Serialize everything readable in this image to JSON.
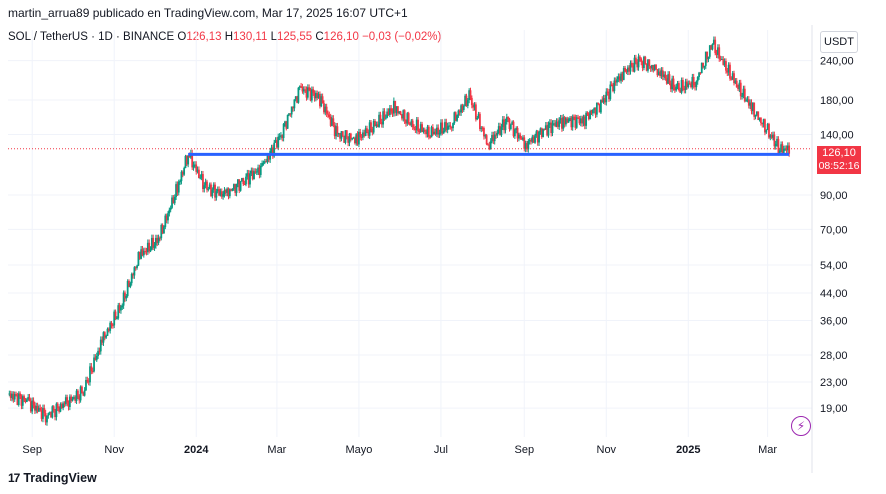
{
  "header": {
    "attribution": "martin_arrua89 publicado en TradingView.com, Mar 17, 2025 16:07 UTC+1"
  },
  "symbol": {
    "name": "SOL / TetherUS · 1D · BINANCE",
    "o_label": "O",
    "o_value": "126,13",
    "h_label": "H",
    "h_value": "130,11",
    "l_label": "L",
    "l_value": "125,55",
    "c_label": "C",
    "c_value": "126,10",
    "change": "−0,03 (−0,02%)"
  },
  "axis": {
    "currency": "USDT",
    "last_price": "126,10",
    "countdown": "08:52:16"
  },
  "footer": {
    "brand": "TradingView",
    "logo": "tradingview-logo-icon"
  },
  "colors": {
    "up": "#089981",
    "down": "#f23645",
    "level": "#2962ff",
    "grid": "#f0f3fa"
  },
  "chart_data": {
    "type": "candlestick",
    "y_scale": "log",
    "y_ticks": [
      "240,00",
      "180,00",
      "140,00",
      "90,00",
      "70,00",
      "54,00",
      "44,00",
      "36,00",
      "28,00",
      "23,00",
      "19,00"
    ],
    "y_tick_values": [
      240,
      180,
      140,
      90,
      70,
      54,
      44,
      36,
      28,
      23,
      19
    ],
    "x_ticks": [
      {
        "label": "Sep",
        "date": "2023-09-01",
        "bold": false
      },
      {
        "label": "Nov",
        "date": "2023-11-01",
        "bold": false
      },
      {
        "label": "2024",
        "date": "2024-01-01",
        "bold": true
      },
      {
        "label": "Mar",
        "date": "2024-03-01",
        "bold": false
      },
      {
        "label": "Mayo",
        "date": "2024-05-01",
        "bold": false
      },
      {
        "label": "Jul",
        "date": "2024-07-01",
        "bold": false
      },
      {
        "label": "Sep",
        "date": "2024-09-01",
        "bold": false
      },
      {
        "label": "Nov",
        "date": "2024-11-01",
        "bold": false
      },
      {
        "label": "2025",
        "date": "2025-01-01",
        "bold": true
      },
      {
        "label": "Mar",
        "date": "2025-03-01",
        "bold": false
      }
    ],
    "x_range": [
      "2023-08-14",
      "2025-04-03"
    ],
    "y_range": [
      16.8,
      300
    ],
    "last_close": 126.1,
    "horizontal_level": {
      "price": 121,
      "start": "2023-12-26",
      "end": "2025-03-17"
    },
    "series": [
      {
        "date": "2023-08-14",
        "close": 21
      },
      {
        "date": "2023-08-28",
        "close": 20
      },
      {
        "date": "2023-09-11",
        "close": 18
      },
      {
        "date": "2023-09-25",
        "close": 19.5
      },
      {
        "date": "2023-10-09",
        "close": 21.5
      },
      {
        "date": "2023-10-23",
        "close": 31
      },
      {
        "date": "2023-11-06",
        "close": 40
      },
      {
        "date": "2023-11-20",
        "close": 58
      },
      {
        "date": "2023-12-04",
        "close": 65
      },
      {
        "date": "2023-12-18",
        "close": 95
      },
      {
        "date": "2023-12-26",
        "close": 121
      },
      {
        "date": "2024-01-08",
        "close": 95
      },
      {
        "date": "2024-01-22",
        "close": 90
      },
      {
        "date": "2024-02-05",
        "close": 100
      },
      {
        "date": "2024-02-19",
        "close": 110
      },
      {
        "date": "2024-03-04",
        "close": 140
      },
      {
        "date": "2024-03-18",
        "close": 195
      },
      {
        "date": "2024-04-01",
        "close": 185
      },
      {
        "date": "2024-04-15",
        "close": 140
      },
      {
        "date": "2024-04-29",
        "close": 135
      },
      {
        "date": "2024-05-13",
        "close": 150
      },
      {
        "date": "2024-05-27",
        "close": 170
      },
      {
        "date": "2024-06-10",
        "close": 150
      },
      {
        "date": "2024-06-24",
        "close": 140
      },
      {
        "date": "2024-07-08",
        "close": 150
      },
      {
        "date": "2024-07-22",
        "close": 185
      },
      {
        "date": "2024-08-05",
        "close": 130
      },
      {
        "date": "2024-08-19",
        "close": 155
      },
      {
        "date": "2024-09-02",
        "close": 130
      },
      {
        "date": "2024-09-16",
        "close": 145
      },
      {
        "date": "2024-09-30",
        "close": 155
      },
      {
        "date": "2024-10-14",
        "close": 155
      },
      {
        "date": "2024-10-28",
        "close": 175
      },
      {
        "date": "2024-11-11",
        "close": 215
      },
      {
        "date": "2024-11-25",
        "close": 240
      },
      {
        "date": "2024-12-09",
        "close": 225
      },
      {
        "date": "2024-12-23",
        "close": 195
      },
      {
        "date": "2025-01-06",
        "close": 205
      },
      {
        "date": "2025-01-19",
        "close": 270
      },
      {
        "date": "2025-02-03",
        "close": 210
      },
      {
        "date": "2025-02-17",
        "close": 170
      },
      {
        "date": "2025-03-03",
        "close": 140
      },
      {
        "date": "2025-03-10",
        "close": 125
      },
      {
        "date": "2025-03-17",
        "close": 126.1
      }
    ]
  }
}
